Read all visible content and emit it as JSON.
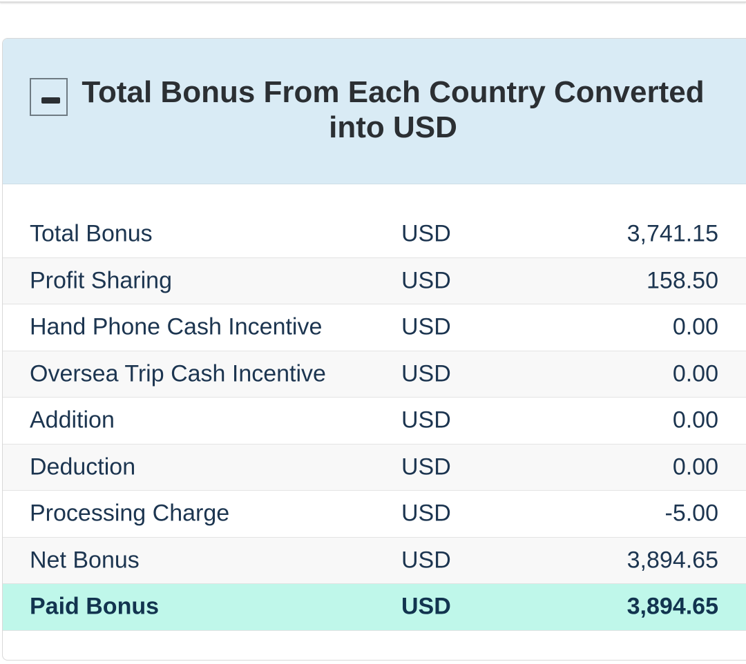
{
  "section": {
    "title": "Total Bonus From Each Country Converted into USD",
    "toggle_icon": "minus-icon"
  },
  "rows": [
    {
      "label": "Total Bonus",
      "currency": "USD",
      "amount": "3,741.15"
    },
    {
      "label": "Profit Sharing",
      "currency": "USD",
      "amount": "158.50"
    },
    {
      "label": "Hand Phone Cash Incentive",
      "currency": "USD",
      "amount": "0.00"
    },
    {
      "label": "Oversea Trip Cash Incentive",
      "currency": "USD",
      "amount": "0.00"
    },
    {
      "label": "Addition",
      "currency": "USD",
      "amount": "0.00"
    },
    {
      "label": "Deduction",
      "currency": "USD",
      "amount": "0.00"
    },
    {
      "label": "Processing Charge",
      "currency": "USD",
      "amount": "-5.00"
    },
    {
      "label": "Net Bonus",
      "currency": "USD",
      "amount": "3,894.65"
    },
    {
      "label": "Paid Bonus",
      "currency": "USD",
      "amount": "3,894.65"
    }
  ],
  "colors": {
    "header_bg": "#d9ebf5",
    "paid_row_bg": "#bff7ea",
    "text": "#1c3550"
  }
}
